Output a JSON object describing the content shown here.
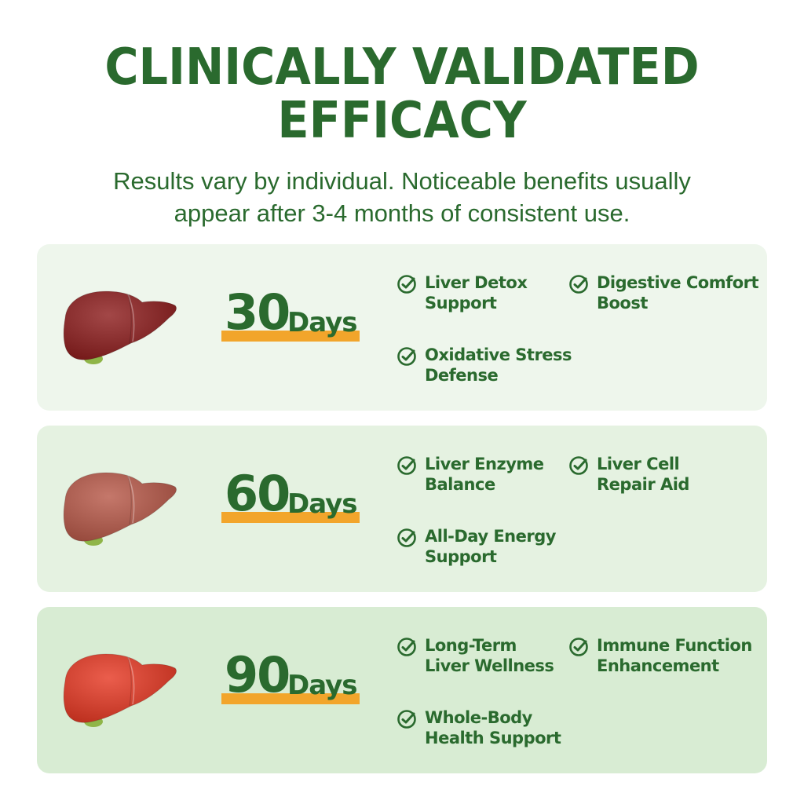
{
  "header": {
    "title_line1": "CLINICALLY VALIDATED",
    "title_line2": "EFFICACY",
    "subtitle_line1": "Results vary by individual. Noticeable benefits usually",
    "subtitle_line2": "appear after 3-4 months of consistent use."
  },
  "colors": {
    "primary_green": "#2a6a2e",
    "accent_orange": "#f2a52b"
  },
  "stages": [
    {
      "number": "30",
      "unit": "Days",
      "liver_color": "#8e1f1f",
      "benefits": [
        "Liver Detox Support",
        "Digestive Comfort Boost",
        "Oxidative Stress Defense"
      ],
      "benefit_lines": [
        [
          "Liver Detox",
          "Support"
        ],
        [
          "Digestive Comfort",
          "Boost"
        ],
        [
          "Oxidative Stress",
          "Defense"
        ]
      ]
    },
    {
      "number": "60",
      "unit": "Days",
      "liver_color": "#b85a4a",
      "benefits": [
        "Liver Enzyme Balance",
        "Liver Cell Repair Aid",
        "All-Day Energy Support"
      ],
      "benefit_lines": [
        [
          "Liver Enzyme",
          "Balance"
        ],
        [
          "Liver Cell",
          "Repair Aid"
        ],
        [
          "All-Day Energy",
          "Support"
        ]
      ]
    },
    {
      "number": "90",
      "unit": "Days",
      "liver_color": "#e63a25",
      "benefits": [
        "Long-Term Liver Wellness",
        "Immune Function Enhancement",
        "Whole-Body Health Support"
      ],
      "benefit_lines": [
        [
          "Long-Term",
          "Liver Wellness"
        ],
        [
          "Immune Function",
          "Enhancement"
        ],
        [
          "Whole-Body",
          "Health Support"
        ]
      ]
    }
  ],
  "icons": {
    "liver": "liver-icon",
    "check": "check-circle-icon"
  }
}
